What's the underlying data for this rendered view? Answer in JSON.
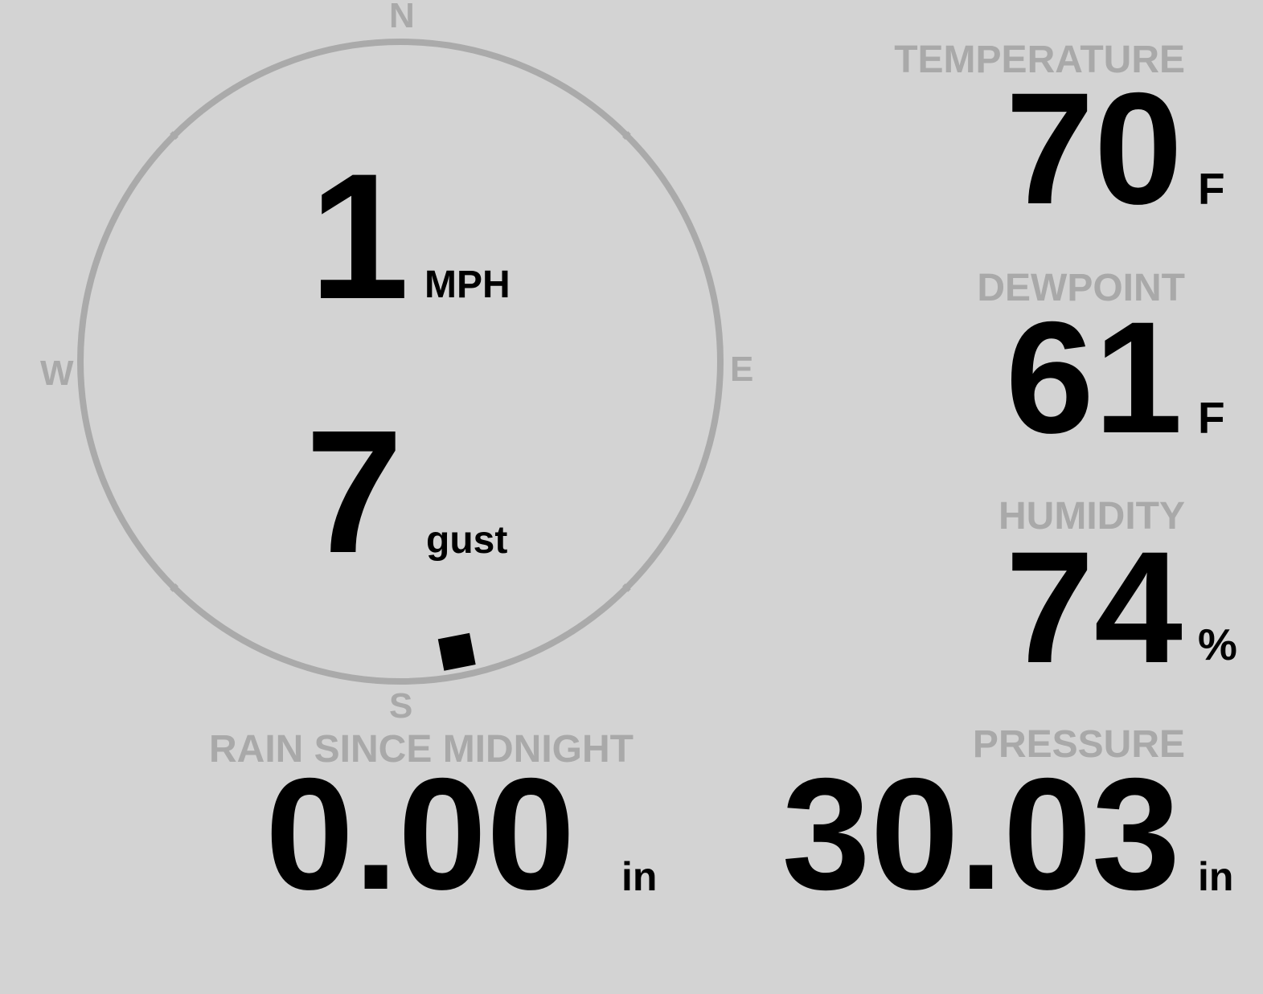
{
  "colors": {
    "background": "#d3d3d3",
    "label": "#a9a9a9",
    "value": "#000000",
    "compass_ring": "#aaaaaa"
  },
  "wind": {
    "compass": {
      "north": "N",
      "east": "E",
      "south": "S",
      "west": "W"
    },
    "direction_degrees": 169,
    "speed": "1",
    "speed_unit": "MPH",
    "gust": "7",
    "gust_unit": "gust"
  },
  "temperature": {
    "label": "TEMPERATURE",
    "value": "70",
    "unit": "F"
  },
  "dewpoint": {
    "label": "DEWPOINT",
    "value": "61",
    "unit": "F"
  },
  "humidity": {
    "label": "HUMIDITY",
    "value": "74",
    "unit": "%"
  },
  "rain": {
    "label": "RAIN SINCE MIDNIGHT",
    "value": "0.00",
    "unit": "in"
  },
  "pressure": {
    "label": "PRESSURE",
    "value": "30.03",
    "unit": "in"
  }
}
